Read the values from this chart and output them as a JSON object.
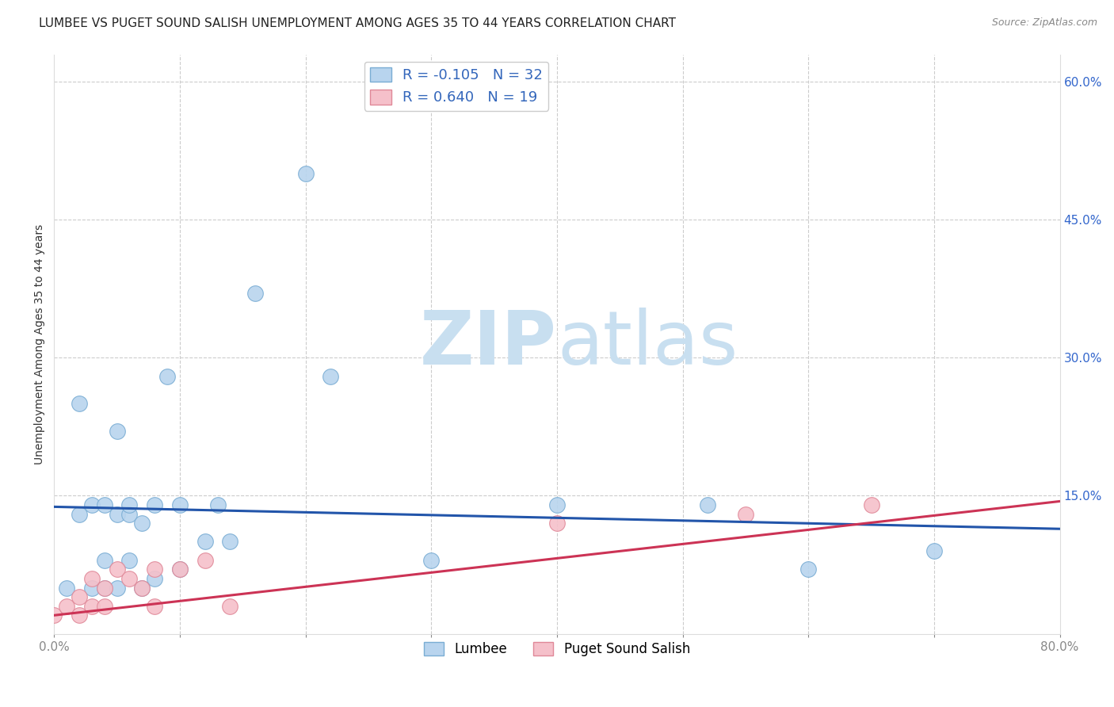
{
  "title": "LUMBEE VS PUGET SOUND SALISH UNEMPLOYMENT AMONG AGES 35 TO 44 YEARS CORRELATION CHART",
  "source": "Source: ZipAtlas.com",
  "ylabel": "Unemployment Among Ages 35 to 44 years",
  "xlim": [
    0.0,
    0.8
  ],
  "ylim": [
    0.0,
    0.63
  ],
  "lumbee_color": "#b8d4ee",
  "lumbee_edge_color": "#7aadd4",
  "puget_color": "#f5c0ca",
  "puget_edge_color": "#e08898",
  "lumbee_line_color": "#2255aa",
  "puget_line_color": "#cc3355",
  "lumbee_R": -0.105,
  "lumbee_N": 32,
  "puget_R": 0.64,
  "puget_N": 19,
  "lumbee_x": [
    0.01,
    0.02,
    0.02,
    0.03,
    0.03,
    0.04,
    0.04,
    0.04,
    0.05,
    0.05,
    0.05,
    0.06,
    0.06,
    0.06,
    0.07,
    0.07,
    0.08,
    0.08,
    0.09,
    0.1,
    0.1,
    0.12,
    0.13,
    0.14,
    0.16,
    0.2,
    0.22,
    0.3,
    0.4,
    0.52,
    0.6,
    0.7
  ],
  "lumbee_y": [
    0.05,
    0.13,
    0.25,
    0.05,
    0.14,
    0.05,
    0.08,
    0.14,
    0.22,
    0.13,
    0.05,
    0.13,
    0.14,
    0.08,
    0.12,
    0.05,
    0.14,
    0.06,
    0.28,
    0.14,
    0.07,
    0.1,
    0.14,
    0.1,
    0.37,
    0.5,
    0.28,
    0.08,
    0.14,
    0.14,
    0.07,
    0.09
  ],
  "puget_x": [
    0.0,
    0.01,
    0.02,
    0.02,
    0.03,
    0.03,
    0.04,
    0.04,
    0.05,
    0.06,
    0.07,
    0.08,
    0.08,
    0.1,
    0.12,
    0.14,
    0.4,
    0.55,
    0.65
  ],
  "puget_y": [
    0.02,
    0.03,
    0.04,
    0.02,
    0.03,
    0.06,
    0.05,
    0.03,
    0.07,
    0.06,
    0.05,
    0.07,
    0.03,
    0.07,
    0.08,
    0.03,
    0.12,
    0.13,
    0.14
  ],
  "grid_color": "#cccccc",
  "background_color": "#ffffff",
  "watermark_zip": "ZIP",
  "watermark_atlas": "atlas",
  "watermark_color_zip": "#c8dff0",
  "watermark_color_atlas": "#c8dff0",
  "legend_R_color": "#3366bb",
  "marker_size": 200,
  "title_fontsize": 11,
  "source_fontsize": 9,
  "tick_fontsize": 11
}
